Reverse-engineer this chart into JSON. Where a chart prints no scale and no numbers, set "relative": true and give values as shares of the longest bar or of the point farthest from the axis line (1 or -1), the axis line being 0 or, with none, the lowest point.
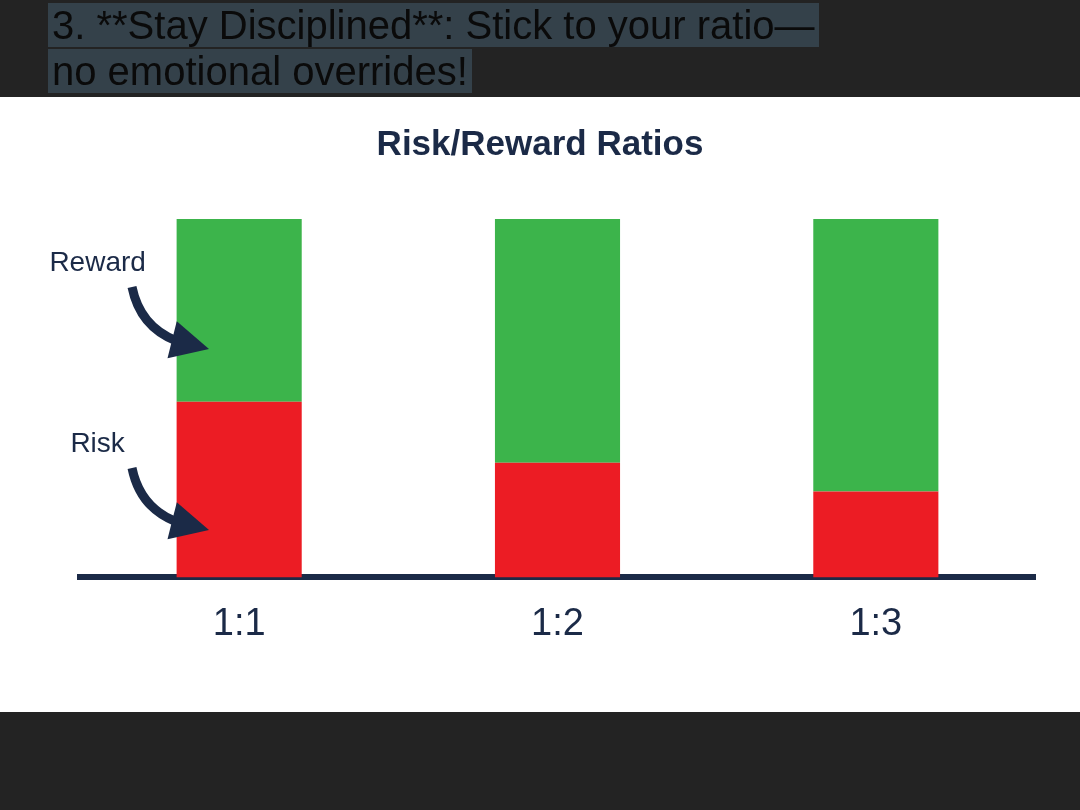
{
  "chart_data": {
    "type": "bar",
    "title": "Risk/Reward Ratios",
    "categories": [
      "1:1",
      "1:2",
      "1:3"
    ],
    "series": [
      {
        "name": "Risk",
        "color": "#ec1c24",
        "values": [
          0.49,
          0.32,
          0.24
        ]
      },
      {
        "name": "Reward",
        "color": "#3cb44b",
        "values": [
          0.51,
          0.68,
          0.76
        ]
      }
    ],
    "stacked": true,
    "relative": true,
    "tick_labels": "x",
    "annotations": [
      "3. **Stay Disciplined**: Stick to your ratio—no emotional overrides!"
    ]
  }
}
